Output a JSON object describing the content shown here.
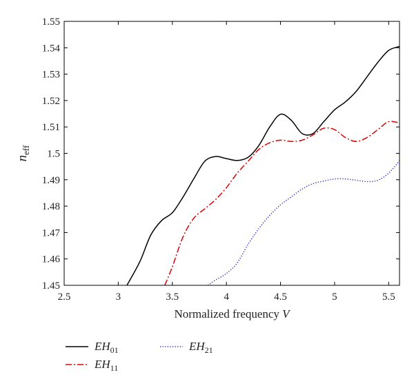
{
  "chart_data": {
    "type": "line",
    "xlabel": "Normalized frequency",
    "xlabel_var": "V",
    "ylabel_main": "n",
    "ylabel_sub": "eff",
    "xlim": [
      2.5,
      5.6
    ],
    "ylim": [
      1.45,
      1.55
    ],
    "xticks": [
      2.5,
      3,
      3.5,
      4,
      4.5,
      5,
      5.5
    ],
    "xtick_labels": [
      "2.5",
      "3",
      "3.5",
      "4",
      "4.5",
      "5",
      "5.5"
    ],
    "yticks": [
      1.45,
      1.46,
      1.47,
      1.48,
      1.49,
      1.5,
      1.51,
      1.52,
      1.53,
      1.54,
      1.55
    ],
    "ytick_labels": [
      "1.45",
      "1.46",
      "1.47",
      "1.48",
      "1.49",
      "1.5",
      "1.51",
      "1.52",
      "1.53",
      "1.54",
      "1.55"
    ],
    "grid": false,
    "legend_position": "bottom-outside",
    "series": [
      {
        "name_main": "EH",
        "name_sub": "01",
        "color": "#000000",
        "style": "solid",
        "points": [
          [
            3.08,
            1.45
          ],
          [
            3.2,
            1.459
          ],
          [
            3.3,
            1.469
          ],
          [
            3.4,
            1.4745
          ],
          [
            3.5,
            1.4775
          ],
          [
            3.6,
            1.4835
          ],
          [
            3.7,
            1.4905
          ],
          [
            3.8,
            1.497
          ],
          [
            3.9,
            1.4988
          ],
          [
            4.0,
            1.498
          ],
          [
            4.1,
            1.4973
          ],
          [
            4.2,
            1.4985
          ],
          [
            4.3,
            1.503
          ],
          [
            4.4,
            1.51
          ],
          [
            4.5,
            1.5148
          ],
          [
            4.6,
            1.5125
          ],
          [
            4.7,
            1.5075
          ],
          [
            4.8,
            1.5075
          ],
          [
            4.9,
            1.512
          ],
          [
            5.0,
            1.5165
          ],
          [
            5.1,
            1.5195
          ],
          [
            5.2,
            1.5235
          ],
          [
            5.3,
            1.529
          ],
          [
            5.4,
            1.5345
          ],
          [
            5.5,
            1.539
          ],
          [
            5.6,
            1.5405
          ]
        ]
      },
      {
        "name_main": "EH",
        "name_sub": "11",
        "color": "#dd0000",
        "style": "dashdot",
        "points": [
          [
            3.43,
            1.45
          ],
          [
            3.5,
            1.457
          ],
          [
            3.6,
            1.4685
          ],
          [
            3.7,
            1.4755
          ],
          [
            3.8,
            1.479
          ],
          [
            3.9,
            1.4825
          ],
          [
            4.0,
            1.487
          ],
          [
            4.1,
            1.4925
          ],
          [
            4.2,
            1.497
          ],
          [
            4.3,
            1.5015
          ],
          [
            4.4,
            1.504
          ],
          [
            4.5,
            1.505
          ],
          [
            4.6,
            1.5045
          ],
          [
            4.7,
            1.505
          ],
          [
            4.8,
            1.507
          ],
          [
            4.9,
            1.5095
          ],
          [
            5.0,
            1.509
          ],
          [
            5.1,
            1.506
          ],
          [
            5.2,
            1.5045
          ],
          [
            5.3,
            1.506
          ],
          [
            5.4,
            1.509
          ],
          [
            5.5,
            1.512
          ],
          [
            5.6,
            1.5115
          ]
        ]
      },
      {
        "name_main": "EH",
        "name_sub": "21",
        "color": "#2222cc",
        "style": "dotted",
        "points": [
          [
            3.83,
            1.45
          ],
          [
            3.9,
            1.452
          ],
          [
            4.0,
            1.4545
          ],
          [
            4.1,
            1.4585
          ],
          [
            4.2,
            1.4655
          ],
          [
            4.3,
            1.4715
          ],
          [
            4.4,
            1.4765
          ],
          [
            4.5,
            1.4805
          ],
          [
            4.6,
            1.4835
          ],
          [
            4.7,
            1.4865
          ],
          [
            4.8,
            1.4885
          ],
          [
            4.9,
            1.4895
          ],
          [
            5.0,
            1.4903
          ],
          [
            5.1,
            1.4903
          ],
          [
            5.2,
            1.4898
          ],
          [
            5.3,
            1.4893
          ],
          [
            5.4,
            1.4898
          ],
          [
            5.5,
            1.4925
          ],
          [
            5.6,
            1.4972
          ]
        ]
      }
    ]
  }
}
